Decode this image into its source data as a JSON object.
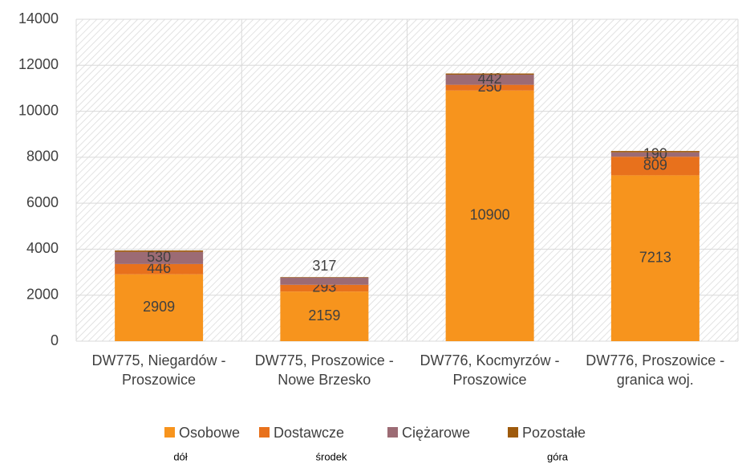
{
  "chart_data": {
    "type": "stacked_bar",
    "categories": [
      "DW775, Niegardów - Proszowice",
      "DW775, Proszowice - Nowe Brzesko",
      "DW776, Kocmyrzów - Proszowice",
      "DW776, Proszowice - granica woj."
    ],
    "series": [
      {
        "name": "Osobowe",
        "color": "#f7941d",
        "values": [
          2909,
          2159,
          10900,
          7213
        ],
        "show_labels": true
      },
      {
        "name": "Dostawcze",
        "color": "#e8711c",
        "values": [
          446,
          293,
          250,
          809
        ],
        "show_labels": true
      },
      {
        "name": "Ciężarowe",
        "color": "#9c6b74",
        "values": [
          530,
          317,
          442,
          190
        ],
        "show_labels": true
      },
      {
        "name": "Pozostałe",
        "color": "#9e5a0c",
        "values": [
          60,
          20,
          50,
          60
        ],
        "show_labels": false
      }
    ],
    "ylim": [
      0,
      14000
    ],
    "yticks": [
      0,
      2000,
      4000,
      6000,
      8000,
      10000,
      12000,
      14000
    ],
    "grid": true,
    "annotations": [
      "dół",
      "środek",
      "góra"
    ]
  }
}
